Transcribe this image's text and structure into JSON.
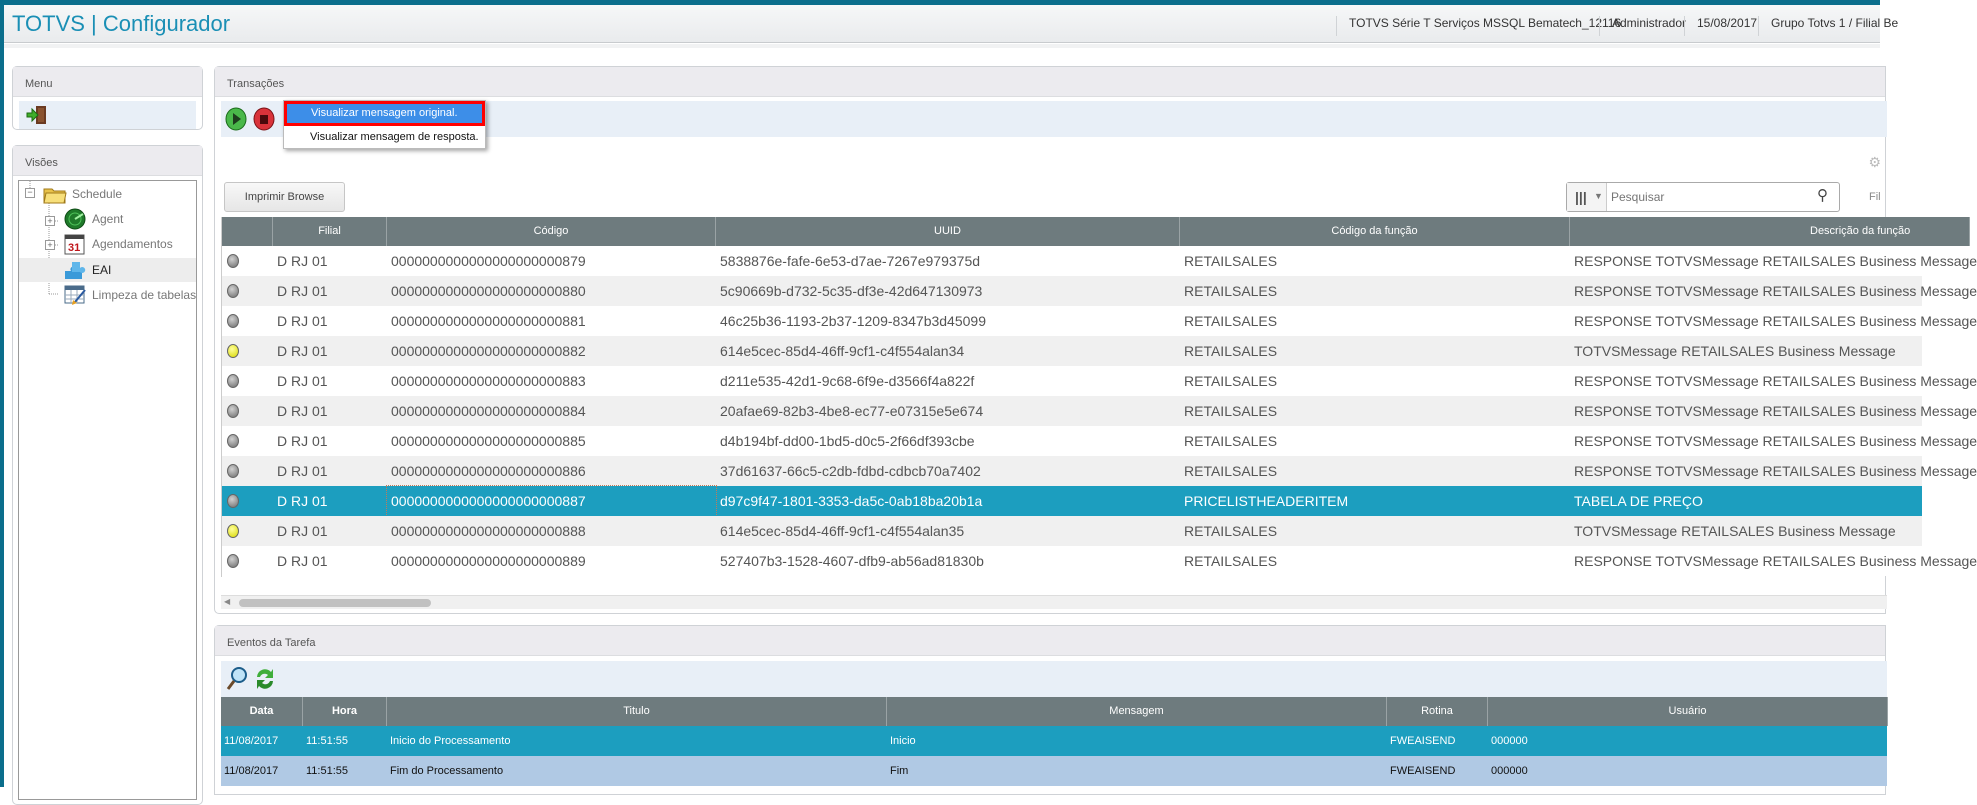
{
  "header": {
    "title": "TOTVS | Configurador",
    "environment": "TOTVS Série T Serviços MSSQL Bematech_12116",
    "user": "Administrador",
    "date": "15/08/2017",
    "company": "Grupo Totvs 1 / Filial Be"
  },
  "menu_panel": {
    "title": "Menu",
    "exit_icon": "exit-door-icon"
  },
  "views_panel": {
    "title": "Visões",
    "tree": [
      {
        "label": "Schedule",
        "icon": "folder-icon",
        "level": 0,
        "expander": "minus"
      },
      {
        "label": "Agent",
        "icon": "radar-icon",
        "level": 1,
        "expander": "plus"
      },
      {
        "label": "Agendamentos",
        "icon": "calendar-icon",
        "level": 1,
        "expander": "plus",
        "icon_text": "31"
      },
      {
        "label": "EAI",
        "icon": "puzzle-icon",
        "level": 1,
        "selected": true
      },
      {
        "label": "Limpeza de tabelas",
        "icon": "table-broom-icon",
        "level": 1
      }
    ]
  },
  "transactions": {
    "title": "Transações",
    "context_menu": [
      "Visualizar mensagem original.",
      "Visualizar mensagem de resposta."
    ],
    "print_button": "Imprimir Browse",
    "search_placeholder": "Pesquisar",
    "filter_label": "Fil",
    "columns": [
      "",
      "Filial",
      "Código",
      "UUID",
      "Código da função",
      "Descrição da função"
    ],
    "rows": [
      {
        "status": "gray",
        "filial": "D RJ 01",
        "codigo": "0000000000000000000000879",
        "uuid": "5838876e-fafe-6e53-d7ae-7267e979375d",
        "funcao": "RETAILSALES",
        "descricao": "RESPONSE TOTVSMessage RETAILSALES Business Message"
      },
      {
        "status": "gray",
        "filial": "D RJ 01",
        "codigo": "0000000000000000000000880",
        "uuid": "5c90669b-d732-5c35-df3e-42d647130973",
        "funcao": "RETAILSALES",
        "descricao": "RESPONSE TOTVSMessage RETAILSALES Business Message"
      },
      {
        "status": "gray",
        "filial": "D RJ 01",
        "codigo": "0000000000000000000000881",
        "uuid": "46c25b36-1193-2b37-1209-8347b3d45099",
        "funcao": "RETAILSALES",
        "descricao": "RESPONSE TOTVSMessage RETAILSALES Business Message"
      },
      {
        "status": "yellow",
        "filial": "D RJ 01",
        "codigo": "0000000000000000000000882",
        "uuid": "614e5cec-85d4-46ff-9cf1-c4f554alan34",
        "funcao": "RETAILSALES",
        "descricao": "TOTVSMessage RETAILSALES Business Message"
      },
      {
        "status": "gray",
        "filial": "D RJ 01",
        "codigo": "0000000000000000000000883",
        "uuid": "d211e535-42d1-9c68-6f9e-d3566f4a822f",
        "funcao": "RETAILSALES",
        "descricao": "RESPONSE TOTVSMessage RETAILSALES Business Message"
      },
      {
        "status": "gray",
        "filial": "D RJ 01",
        "codigo": "0000000000000000000000884",
        "uuid": "20afae69-82b3-4be8-ec77-e07315e5e674",
        "funcao": "RETAILSALES",
        "descricao": "RESPONSE TOTVSMessage RETAILSALES Business Message"
      },
      {
        "status": "gray",
        "filial": "D RJ 01",
        "codigo": "0000000000000000000000885",
        "uuid": "d4b194bf-dd00-1bd5-d0c5-2f66df393cbe",
        "funcao": "RETAILSALES",
        "descricao": "RESPONSE TOTVSMessage RETAILSALES Business Message"
      },
      {
        "status": "gray",
        "filial": "D RJ 01",
        "codigo": "0000000000000000000000886",
        "uuid": "37d61637-66c5-c2db-fdbd-cdbcb70a7402",
        "funcao": "RETAILSALES",
        "descricao": "RESPONSE TOTVSMessage RETAILSALES Business Message"
      },
      {
        "status": "gray",
        "filial": "D RJ 01",
        "codigo": "0000000000000000000000887",
        "uuid": "d97c9f47-1801-3353-da5c-0ab18ba20b1a",
        "funcao": "PRICELISTHEADERITEM",
        "descricao": "TABELA DE PREÇO",
        "selected": true
      },
      {
        "status": "yellow",
        "filial": "D RJ 01",
        "codigo": "0000000000000000000000888",
        "uuid": "614e5cec-85d4-46ff-9cf1-c4f554alan35",
        "funcao": "RETAILSALES",
        "descricao": "TOTVSMessage RETAILSALES Business Message"
      },
      {
        "status": "gray",
        "filial": "D RJ 01",
        "codigo": "0000000000000000000000889",
        "uuid": "527407b3-1528-4607-dfb9-ab56ad81830b",
        "funcao": "RETAILSALES",
        "descricao": "RESPONSE TOTVSMessage RETAILSALES Business Message"
      }
    ]
  },
  "events": {
    "title": "Eventos da Tarefa",
    "columns": [
      "Data",
      "Hora",
      "Titulo",
      "Mensagem",
      "Rotina",
      "Usuário"
    ],
    "rows": [
      {
        "data": "11/08/2017",
        "hora": "11:51:55",
        "titulo": "Inicio do Processamento",
        "mensagem": "Inicio",
        "rotina": "FWEAISEND",
        "usuario": "000000",
        "selected": true
      },
      {
        "data": "11/08/2017",
        "hora": "11:51:55",
        "titulo": "Fim do Processamento",
        "mensagem": "Fim",
        "rotina": "FWEAISEND",
        "usuario": "000000"
      }
    ]
  },
  "colors": {
    "accent": "#1a8fb5",
    "selected_row": "#1c9ebf",
    "header_bg": "#6e7b7e",
    "highlight_border": "#ff0000",
    "menu_highlight": "#3d8ee8",
    "event_row_alt": "#b0c9e4"
  }
}
